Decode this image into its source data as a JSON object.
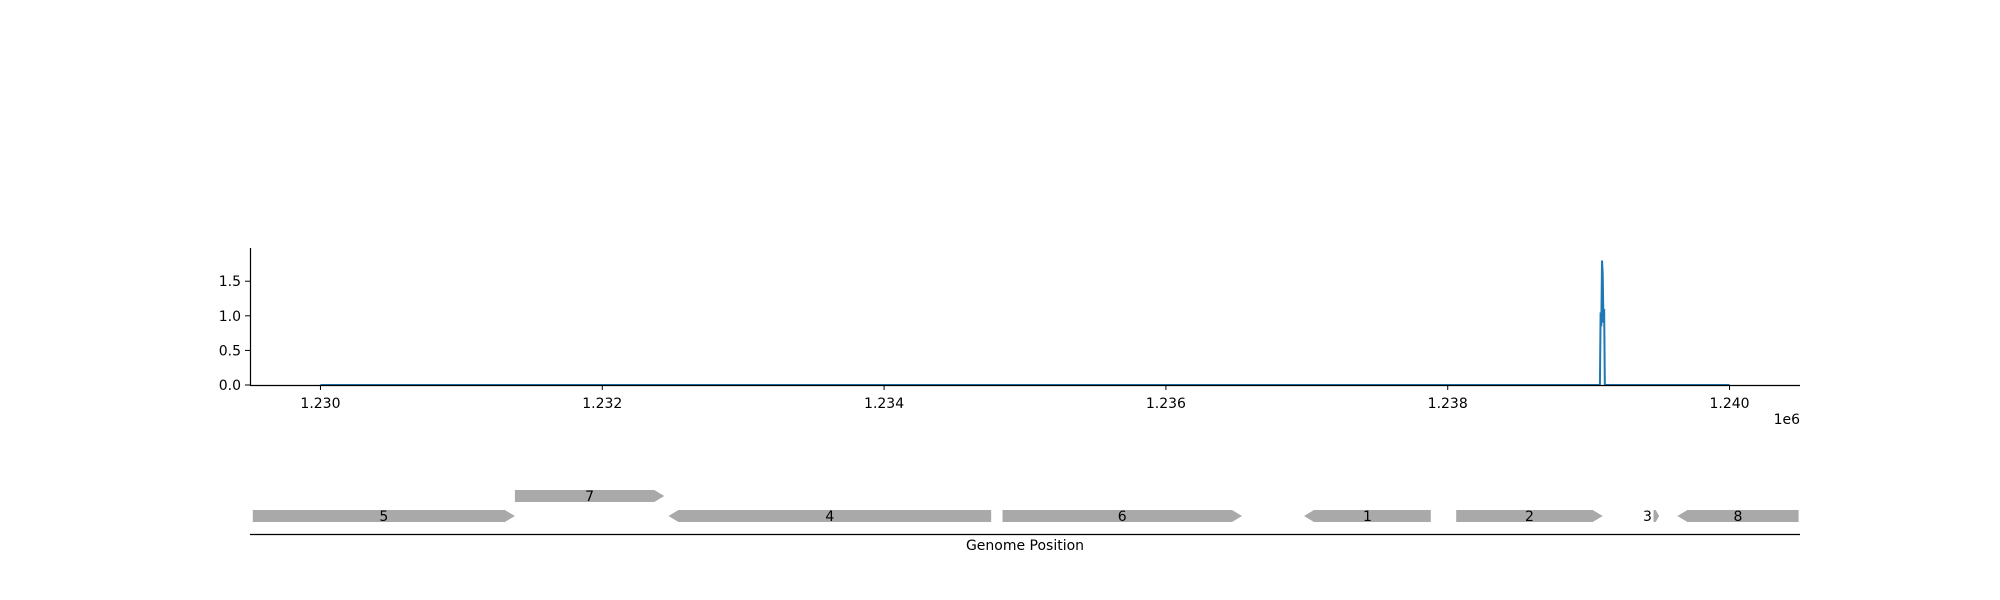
{
  "chart_data": [
    {
      "type": "line",
      "x_ticks": [
        "1.230",
        "1.232",
        "1.234",
        "1.236",
        "1.238",
        "1.240"
      ],
      "x_tick_values": [
        1230000,
        1232000,
        1234000,
        1236000,
        1238000,
        1240000
      ],
      "x_offset_label": "1e6",
      "y_ticks": [
        "0.0",
        "0.5",
        "1.0",
        "1.5"
      ],
      "y_tick_values": [
        0.0,
        0.5,
        1.0,
        1.5
      ],
      "xlim": [
        1229500,
        1240500
      ],
      "ylim": [
        0,
        1.98
      ],
      "series": [
        {
          "color": "#1f77b4",
          "x": [
            1230000,
            1239080,
            1239085,
            1239090,
            1239095,
            1239100,
            1239105,
            1239110,
            1239115,
            1240000
          ],
          "y": [
            0.0,
            0.0,
            1.05,
            0.85,
            1.8,
            1.6,
            0.9,
            1.1,
            0.0,
            0.0
          ]
        }
      ],
      "grid": false,
      "spines": [
        "left",
        "bottom"
      ]
    },
    {
      "type": "gene-track",
      "xlabel": "Genome Position",
      "genes": [
        {
          "label": "5",
          "start": 1229520,
          "end": 1231380,
          "strand": "+",
          "row": 0
        },
        {
          "label": "7",
          "start": 1231380,
          "end": 1232440,
          "strand": "+",
          "row": 1
        },
        {
          "label": "4",
          "start": 1232470,
          "end": 1234760,
          "strand": "-",
          "row": 0
        },
        {
          "label": "6",
          "start": 1234840,
          "end": 1236540,
          "strand": "+",
          "row": 0
        },
        {
          "label": "1",
          "start": 1236980,
          "end": 1237880,
          "strand": "-",
          "row": 0
        },
        {
          "label": "2",
          "start": 1238060,
          "end": 1239100,
          "strand": "+",
          "row": 0
        },
        {
          "label": "3",
          "start": 1239460,
          "end": 1239500,
          "strand": "+",
          "row": 0
        },
        {
          "label": "8",
          "start": 1239630,
          "end": 1240490,
          "strand": "-",
          "row": 0
        }
      ],
      "gene_color": "#a9a9a9"
    }
  ]
}
